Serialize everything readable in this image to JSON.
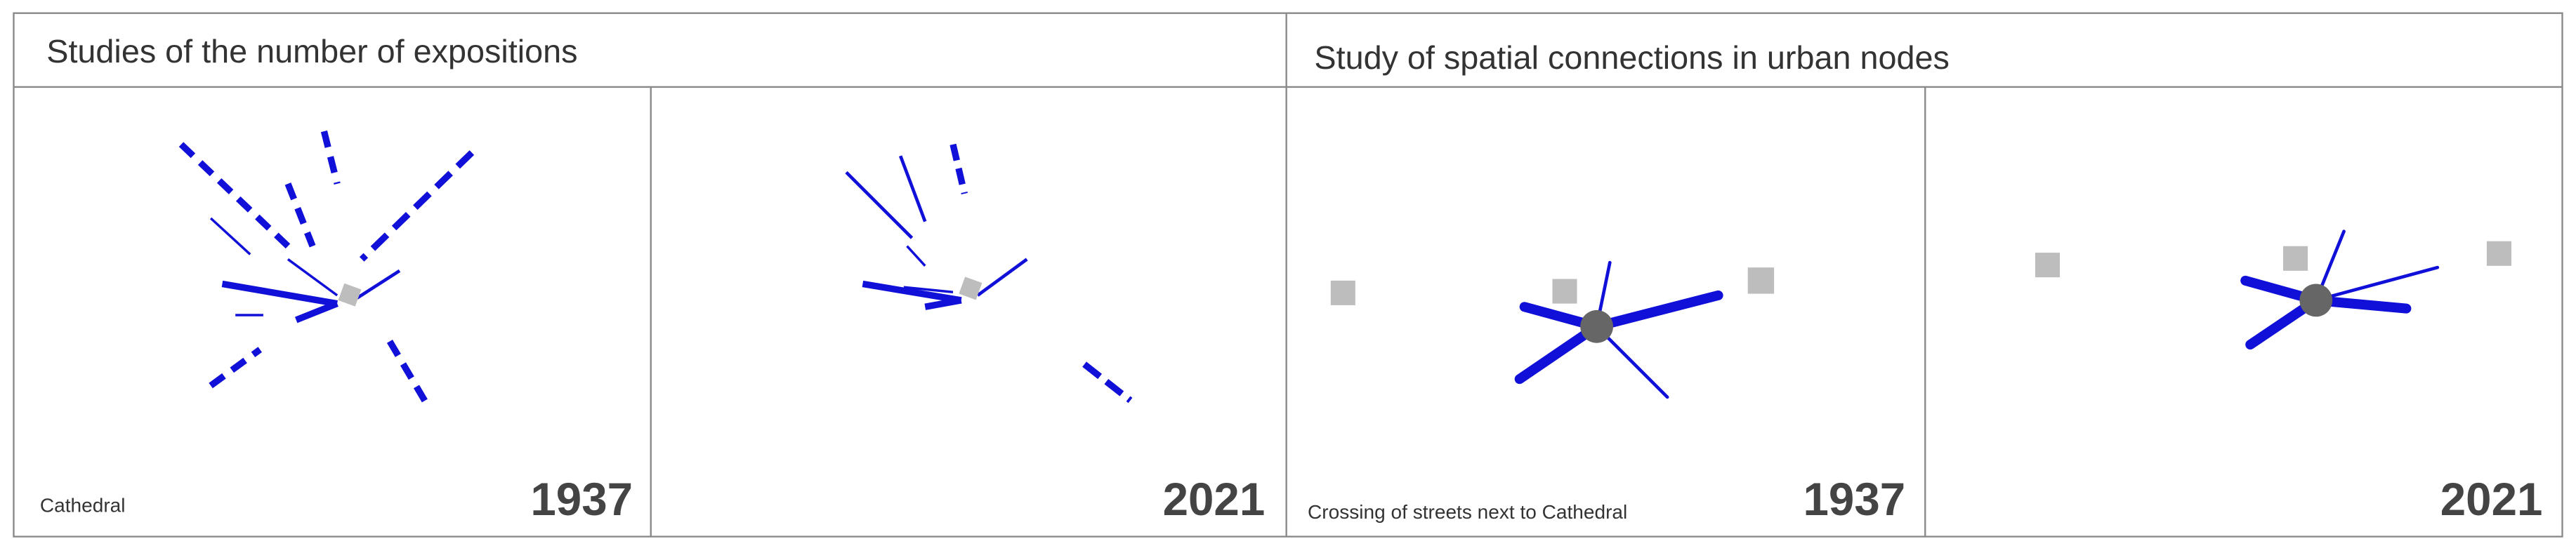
{
  "sections": [
    {
      "title": "Studies of the number of expositions",
      "panels": [
        {
          "caption": "Cathedral",
          "year": "1937"
        },
        {
          "year": "2021"
        }
      ]
    },
    {
      "title": "Study of spatial connections in urban nodes",
      "panels": [
        {
          "caption": "Crossing of streets next to Cathedral",
          "year": "1937"
        },
        {
          "year": "2021"
        }
      ]
    }
  ]
}
